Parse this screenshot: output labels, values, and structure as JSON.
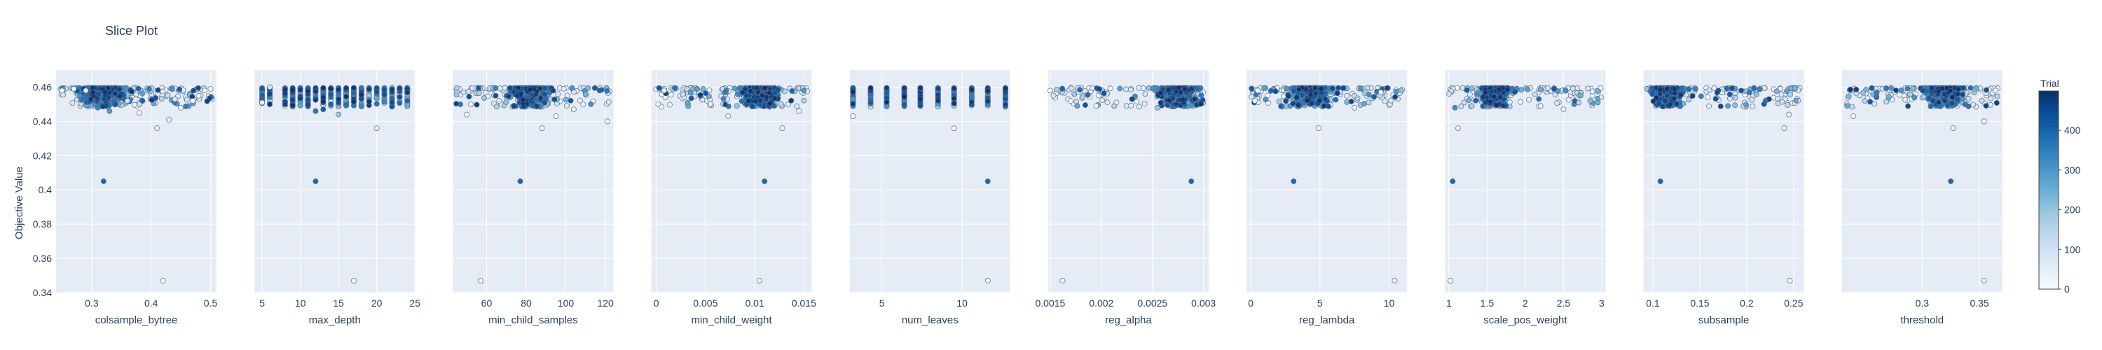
{
  "chart_data": {
    "type": "scatter",
    "title": "Slice Plot",
    "ylabel": "Objective Value",
    "ylim": [
      0.34,
      0.47
    ],
    "yticks": [
      0.34,
      0.36,
      0.38,
      0.4,
      0.42,
      0.44,
      0.46
    ],
    "ytick_labels": [
      "0.34",
      "0.36",
      "0.38",
      "0.4",
      "0.42",
      "0.44",
      "0.46"
    ],
    "colorbar": {
      "title": "Trial",
      "range": [
        0,
        499
      ],
      "ticks": [
        0,
        100,
        200,
        300,
        400
      ],
      "tick_labels": [
        "0",
        "100",
        "200",
        "300",
        "400"
      ],
      "colors": [
        "#f7fbff",
        "#deebf7",
        "#c6dbef",
        "#9ecae1",
        "#6baed6",
        "#4292c6",
        "#2171b5",
        "#08519c",
        "#08306b"
      ]
    },
    "panels": [
      {
        "xlabel": "colsample_bytree",
        "xlim": [
          0.24,
          0.51
        ],
        "xticks": [
          0.3,
          0.4,
          0.5
        ],
        "xtick_labels": [
          "0.3",
          "0.4",
          "0.5"
        ],
        "cluster": {
          "center": 0.32,
          "spread": 0.05
        },
        "points": [
          {
            "x": 0.25,
            "y": 0.458,
            "trial": 2
          },
          {
            "x": 0.27,
            "y": 0.459,
            "trial": 6
          },
          {
            "x": 0.29,
            "y": 0.458,
            "trial": 12
          },
          {
            "x": 0.32,
            "y": 0.405,
            "trial": 410
          },
          {
            "x": 0.42,
            "y": 0.347,
            "trial": 5
          },
          {
            "x": 0.41,
            "y": 0.436,
            "trial": 20
          },
          {
            "x": 0.43,
            "y": 0.441,
            "trial": 25
          },
          {
            "x": 0.45,
            "y": 0.448,
            "trial": 15
          },
          {
            "x": 0.47,
            "y": 0.452,
            "trial": 10
          },
          {
            "x": 0.49,
            "y": 0.458,
            "trial": 4
          },
          {
            "x": 0.5,
            "y": 0.459,
            "trial": 8
          },
          {
            "x": 0.48,
            "y": 0.455,
            "trial": 30
          },
          {
            "x": 0.44,
            "y": 0.453,
            "trial": 40
          },
          {
            "x": 0.38,
            "y": 0.445,
            "trial": 35
          },
          {
            "x": 0.36,
            "y": 0.452,
            "trial": 60
          },
          {
            "x": 0.33,
            "y": 0.446,
            "trial": 300
          },
          {
            "x": 0.31,
            "y": 0.448,
            "trial": 350
          },
          {
            "x": 0.34,
            "y": 0.45,
            "trial": 420
          }
        ]
      },
      {
        "xlabel": "max_depth",
        "xlim": [
          4,
          25
        ],
        "xticks": [
          5,
          10,
          15,
          20,
          25
        ],
        "xtick_labels": [
          "5",
          "10",
          "15",
          "20",
          "25"
        ],
        "columns": [
          5,
          6,
          8,
          9,
          10,
          11,
          12,
          13,
          14,
          15,
          16,
          17,
          18,
          19,
          20,
          21,
          22,
          23,
          24
        ],
        "points": [
          {
            "x": 12,
            "y": 0.405,
            "trial": 410
          },
          {
            "x": 17,
            "y": 0.347,
            "trial": 5
          },
          {
            "x": 20,
            "y": 0.436,
            "trial": 20
          },
          {
            "x": 5,
            "y": 0.451,
            "trial": 3
          },
          {
            "x": 6,
            "y": 0.46,
            "trial": 50
          },
          {
            "x": 12,
            "y": 0.446,
            "trial": 380
          },
          {
            "x": 13,
            "y": 0.447,
            "trial": 420
          },
          {
            "x": 15,
            "y": 0.444,
            "trial": 200
          }
        ]
      },
      {
        "xlabel": "min_child_samples",
        "xlim": [
          43,
          124
        ],
        "xticks": [
          60,
          80,
          100,
          120
        ],
        "xtick_labels": [
          "60",
          "80",
          "100",
          "120"
        ],
        "cluster": {
          "center": 82,
          "spread": 14
        },
        "points": [
          {
            "x": 77,
            "y": 0.405,
            "trial": 410
          },
          {
            "x": 57,
            "y": 0.347,
            "trial": 5
          },
          {
            "x": 88,
            "y": 0.436,
            "trial": 20
          },
          {
            "x": 50,
            "y": 0.444,
            "trial": 8
          },
          {
            "x": 52,
            "y": 0.45,
            "trial": 12
          },
          {
            "x": 117,
            "y": 0.458,
            "trial": 400
          },
          {
            "x": 110,
            "y": 0.456,
            "trial": 250
          },
          {
            "x": 121,
            "y": 0.44,
            "trial": 15
          },
          {
            "x": 104,
            "y": 0.447,
            "trial": 40
          },
          {
            "x": 95,
            "y": 0.443,
            "trial": 30
          }
        ]
      },
      {
        "xlabel": "min_child_weight",
        "xlim": [
          -0.0005,
          0.0158
        ],
        "xticks": [
          0,
          0.005,
          0.01,
          0.015
        ],
        "xtick_labels": [
          "0",
          "0.005",
          "0.01",
          "0.015"
        ],
        "cluster": {
          "center": 0.0105,
          "spread": 0.0025
        },
        "points": [
          {
            "x": 0.011,
            "y": 0.405,
            "trial": 410
          },
          {
            "x": 0.0105,
            "y": 0.347,
            "trial": 5
          },
          {
            "x": 0.0128,
            "y": 0.436,
            "trial": 20
          },
          {
            "x": 0.0002,
            "y": 0.45,
            "trial": 10
          },
          {
            "x": 0.0008,
            "y": 0.458,
            "trial": 6
          },
          {
            "x": 0.0073,
            "y": 0.443,
            "trial": 25
          },
          {
            "x": 0.0082,
            "y": 0.449,
            "trial": 200
          },
          {
            "x": 0.015,
            "y": 0.458,
            "trial": 300
          },
          {
            "x": 0.0145,
            "y": 0.446,
            "trial": 35
          }
        ]
      },
      {
        "xlabel": "num_leaves",
        "xlim": [
          3,
          13
        ],
        "xticks": [
          5,
          10
        ],
        "xtick_labels": [
          "5",
          "10"
        ],
        "columns": [
          3.2,
          4.3,
          5.3,
          6.4,
          7.4,
          8.5,
          9.5,
          10.6,
          11.6,
          12.7
        ],
        "points": [
          {
            "x": 11.6,
            "y": 0.405,
            "trial": 410
          },
          {
            "x": 11.6,
            "y": 0.347,
            "trial": 5
          },
          {
            "x": 9.5,
            "y": 0.436,
            "trial": 20
          },
          {
            "x": 3.2,
            "y": 0.443,
            "trial": 8
          },
          {
            "x": 3.2,
            "y": 0.453,
            "trial": 300
          },
          {
            "x": 8.5,
            "y": 0.452,
            "trial": 470
          }
        ]
      },
      {
        "xlabel": "reg_alpha",
        "xlim": [
          0.00148,
          0.00305
        ],
        "xticks": [
          0.0015,
          0.002,
          0.0025,
          0.003
        ],
        "xtick_labels": [
          "0.0015",
          "0.002",
          "0.0025",
          "0.003"
        ],
        "cluster": {
          "center": 0.00275,
          "spread": 0.00025
        },
        "points": [
          {
            "x": 0.00288,
            "y": 0.405,
            "trial": 410
          },
          {
            "x": 0.00162,
            "y": 0.347,
            "trial": 5
          },
          {
            "x": 0.00195,
            "y": 0.449,
            "trial": 10
          },
          {
            "x": 0.0023,
            "y": 0.453,
            "trial": 480
          },
          {
            "x": 0.00255,
            "y": 0.448,
            "trial": 200
          },
          {
            "x": 0.0017,
            "y": 0.452,
            "trial": 12
          },
          {
            "x": 0.0015,
            "y": 0.458,
            "trial": 3
          }
        ]
      },
      {
        "xlabel": "reg_lambda",
        "xlim": [
          -0.3,
          11.3
        ],
        "xticks": [
          0,
          5,
          10
        ],
        "xtick_labels": [
          "0",
          "5",
          "10"
        ],
        "cluster": {
          "center": 4.2,
          "spread": 1.8
        },
        "points": [
          {
            "x": 3.1,
            "y": 0.405,
            "trial": 410
          },
          {
            "x": 10.4,
            "y": 0.347,
            "trial": 5
          },
          {
            "x": 4.9,
            "y": 0.436,
            "trial": 20
          },
          {
            "x": 0.3,
            "y": 0.452,
            "trial": 8
          },
          {
            "x": 0.5,
            "y": 0.458,
            "trial": 4
          },
          {
            "x": 7.5,
            "y": 0.448,
            "trial": 25
          },
          {
            "x": 9.4,
            "y": 0.457,
            "trial": 12
          }
        ]
      },
      {
        "xlabel": "scale_pos_weight",
        "xlim": [
          0.95,
          3.05
        ],
        "xticks": [
          1,
          1.5,
          2,
          2.5,
          3
        ],
        "xtick_labels": [
          "1",
          "1.5",
          "2",
          "2.5",
          "3"
        ],
        "cluster": {
          "center": 1.6,
          "spread": 0.25
        },
        "points": [
          {
            "x": 1.05,
            "y": 0.405,
            "trial": 410
          },
          {
            "x": 1.02,
            "y": 0.347,
            "trial": 5
          },
          {
            "x": 1.12,
            "y": 0.436,
            "trial": 20
          },
          {
            "x": 1.08,
            "y": 0.448,
            "trial": 330
          },
          {
            "x": 1.2,
            "y": 0.451,
            "trial": 120
          },
          {
            "x": 1.3,
            "y": 0.449,
            "trial": 160
          },
          {
            "x": 2.2,
            "y": 0.449,
            "trial": 35
          },
          {
            "x": 2.5,
            "y": 0.447,
            "trial": 25
          },
          {
            "x": 2.7,
            "y": 0.451,
            "trial": 150
          },
          {
            "x": 2.85,
            "y": 0.452,
            "trial": 220
          },
          {
            "x": 2.95,
            "y": 0.451,
            "trial": 260
          }
        ]
      },
      {
        "xlabel": "subsample",
        "xlim": [
          0.09,
          0.261
        ],
        "xticks": [
          0.1,
          0.15,
          0.2,
          0.25
        ],
        "xtick_labels": [
          "0.1",
          "0.15",
          "0.2",
          "0.25"
        ],
        "cluster": {
          "center": 0.115,
          "spread": 0.02
        },
        "points": [
          {
            "x": 0.108,
            "y": 0.405,
            "trial": 410
          },
          {
            "x": 0.246,
            "y": 0.347,
            "trial": 5
          },
          {
            "x": 0.24,
            "y": 0.436,
            "trial": 20
          },
          {
            "x": 0.18,
            "y": 0.449,
            "trial": 300
          },
          {
            "x": 0.22,
            "y": 0.452,
            "trial": 380
          },
          {
            "x": 0.245,
            "y": 0.444,
            "trial": 30
          }
        ]
      },
      {
        "xlabel": "threshold",
        "xlim": [
          0.23,
          0.37
        ],
        "xticks": [
          0.3,
          0.35
        ],
        "xtick_labels": [
          "0.3",
          "0.35"
        ],
        "cluster": {
          "center": 0.318,
          "spread": 0.022
        },
        "points": [
          {
            "x": 0.325,
            "y": 0.405,
            "trial": 410
          },
          {
            "x": 0.354,
            "y": 0.347,
            "trial": 5
          },
          {
            "x": 0.327,
            "y": 0.436,
            "trial": 20
          },
          {
            "x": 0.24,
            "y": 0.443,
            "trial": 6
          },
          {
            "x": 0.25,
            "y": 0.452,
            "trial": 150
          },
          {
            "x": 0.26,
            "y": 0.455,
            "trial": 350
          },
          {
            "x": 0.354,
            "y": 0.44,
            "trial": 25
          },
          {
            "x": 0.364,
            "y": 0.458,
            "trial": 10
          }
        ]
      }
    ]
  }
}
